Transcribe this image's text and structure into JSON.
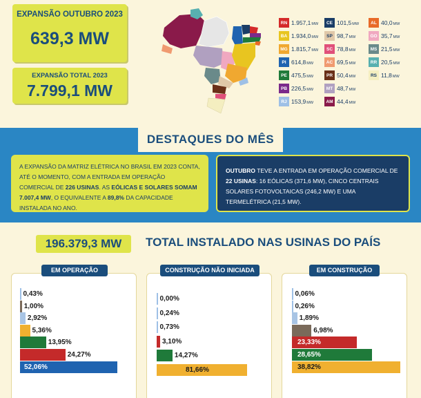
{
  "expansion_month": {
    "label": "EXPANSÃO OUTUBRO 2023",
    "value": "639,3 MW"
  },
  "expansion_total": {
    "label": "EXPANSÃO TOTAL 2023",
    "value": "7.799,1 MW"
  },
  "legend": [
    {
      "code": "RN",
      "value": "1.957,1",
      "unit": "MW",
      "color": "#d42a2a"
    },
    {
      "code": "BA",
      "value": "1.934,0",
      "unit": "MW",
      "color": "#e8c520"
    },
    {
      "code": "MG",
      "value": "1.815,7",
      "unit": "MW",
      "color": "#f0a830"
    },
    {
      "code": "PI",
      "value": "614,8",
      "unit": "MW",
      "color": "#1f63b0"
    },
    {
      "code": "PE",
      "value": "475,5",
      "unit": "MW",
      "color": "#1f7a3a"
    },
    {
      "code": "PB",
      "value": "226,5",
      "unit": "MW",
      "color": "#7a2a8a"
    },
    {
      "code": "RJ",
      "value": "153,9",
      "unit": "MW",
      "color": "#9ec0e6"
    },
    {
      "code": "CE",
      "value": "101,5",
      "unit": "MW",
      "color": "#1a3d66"
    },
    {
      "code": "SP",
      "value": "98,7",
      "unit": "MW",
      "color": "#e0c8a8"
    },
    {
      "code": "SC",
      "value": "78,8",
      "unit": "MW",
      "color": "#e0507a"
    },
    {
      "code": "AC",
      "value": "69,5",
      "unit": "MW",
      "color": "#f09a70"
    },
    {
      "code": "PR",
      "value": "50,4",
      "unit": "MW",
      "color": "#6a3018"
    },
    {
      "code": "MT",
      "value": "48,7",
      "unit": "MW",
      "color": "#b0a0c0"
    },
    {
      "code": "AM",
      "value": "44,4",
      "unit": "MW",
      "color": "#8a1a4a"
    },
    {
      "code": "AL",
      "value": "40,0",
      "unit": "MW",
      "color": "#e86a28"
    },
    {
      "code": "GO",
      "value": "35,7",
      "unit": "MW",
      "color": "#f0a8c0"
    },
    {
      "code": "MS",
      "value": "21,5",
      "unit": "MW",
      "color": "#6a8a8a"
    },
    {
      "code": "RR",
      "value": "20,5",
      "unit": "MW",
      "color": "#58b0b0"
    },
    {
      "code": "RS",
      "value": "11,8",
      "unit": "MW",
      "color": "#f4eec0"
    }
  ],
  "highlights": {
    "title": "DESTAQUES DO MÊS",
    "left": {
      "t1": "A EXPANSÃO DA MATRIZ ELÉTRICA NO BRASIL EM 2023 CONTA, ATÉ O MOMENTO, COM A ENTRADA EM OPERAÇÃO COMERCIAL DE ",
      "b1": "226 USINAS",
      "t2": ". AS ",
      "b2": "EÓLICAS E SOLARES SOMAM 7.007,4 MW",
      "t3": ", O EQUIVALENTE A ",
      "b3": "89,8%",
      "t4": " DA CAPACIDADE INSTALADA NO ANO."
    },
    "right": {
      "b1": "OUTUBRO",
      "t1": " TEVE A ENTRADA EM OPERAÇÃO COMERCIAL DE ",
      "b2": "22 USINAS",
      "t2": ": 16 EÓLICAS (371,6 MW), CINCO CENTRAIS SOLARES FOTOVOLTAICAS (246,2 MW) E UMA TERMELÉTRICA (21,5 MW)."
    }
  },
  "total": {
    "value": "196.379,3 MW",
    "label": "TOTAL INSTALADO NAS USINAS DO PAÍS"
  },
  "chart_data": [
    {
      "type": "bar",
      "title": "EM OPERAÇÃO",
      "values": [
        0.43,
        1.0,
        2.92,
        5.36,
        13.95,
        24.27,
        52.06
      ],
      "labels": [
        "0,43%",
        "1,00%",
        "2,92%",
        "5,36%",
        "13,95%",
        "24,27%",
        "52,06%"
      ],
      "colors": [
        "#9ec0e6",
        "#7a6a5a",
        "#a8c4e4",
        "#f0b030",
        "#1f7a3a",
        "#c42a2a",
        "#1f63b0"
      ]
    },
    {
      "type": "bar",
      "title": "CONSTRUÇÃO NÃO INICIADA",
      "values": [
        0.0,
        0.24,
        0.73,
        3.1,
        14.27,
        81.66
      ],
      "labels": [
        "0,00%",
        "0,24%",
        "0,73%",
        "3,10%",
        "14,27%",
        "81,66%"
      ],
      "colors": [
        "#9ec0e6",
        "#9ec0e6",
        "#9ec0e6",
        "#c42a2a",
        "#1f7a3a",
        "#f0b030"
      ]
    },
    {
      "type": "bar",
      "title": "EM CONSTRUÇÃO",
      "values": [
        0.06,
        0.26,
        1.89,
        6.98,
        23.33,
        28.65,
        38.82
      ],
      "labels": [
        "0,06%",
        "0,26%",
        "1,89%",
        "6,98%",
        "23,33%",
        "28,65%",
        "38,82%"
      ],
      "colors": [
        "#9ec0e6",
        "#9ec0e6",
        "#a8c4e4",
        "#7a6a5a",
        "#c42a2a",
        "#1f7a3a",
        "#f0b030"
      ]
    }
  ]
}
